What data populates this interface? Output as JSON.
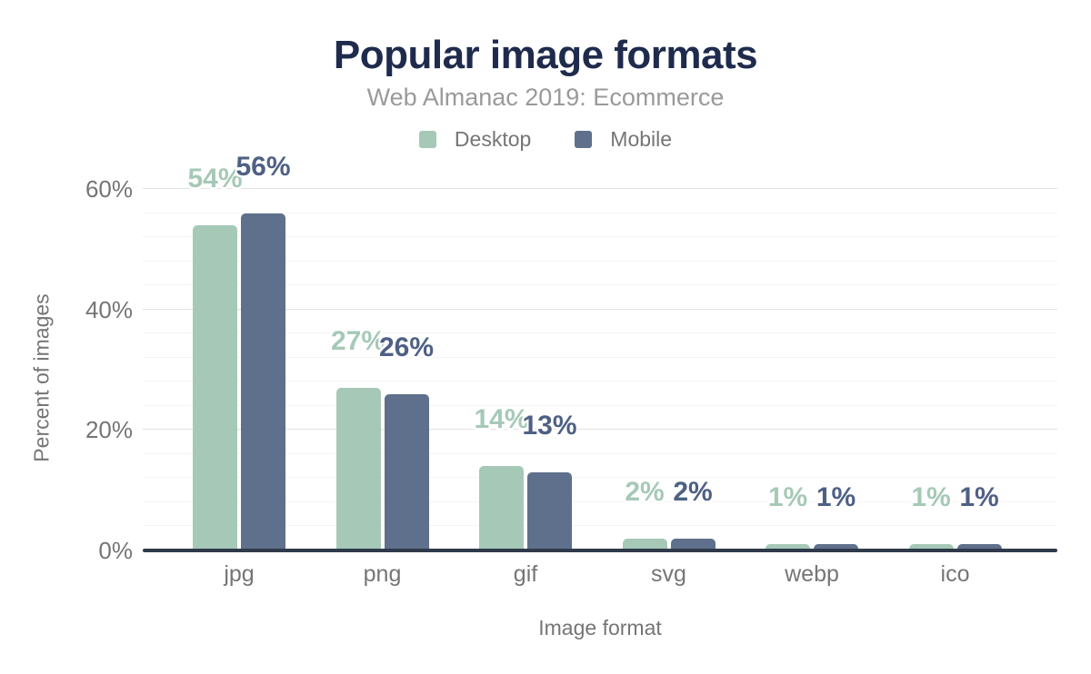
{
  "chart_data": {
    "type": "bar",
    "title": "Popular image formats",
    "subtitle": "Web Almanac 2019: Ecommerce",
    "xlabel": "Image format",
    "ylabel": "Percent of images",
    "categories": [
      "jpg",
      "png",
      "gif",
      "svg",
      "webp",
      "ico"
    ],
    "series": [
      {
        "name": "Desktop",
        "color": "#a6c9b7",
        "label_color": "#a6c9b7",
        "values": [
          54,
          27,
          14,
          2,
          1,
          1
        ],
        "labels": [
          "54%",
          "27%",
          "14%",
          "2%",
          "1%",
          "1%"
        ]
      },
      {
        "name": "Mobile",
        "color": "#5f708c",
        "label_color": "#4e6084",
        "values": [
          56,
          26,
          13,
          2,
          1,
          1
        ],
        "labels": [
          "56%",
          "26%",
          "13%",
          "2%",
          "1%",
          "1%"
        ]
      }
    ],
    "y_ticks": [
      {
        "value": 0,
        "label": "0%"
      },
      {
        "value": 20,
        "label": "20%"
      },
      {
        "value": 40,
        "label": "40%"
      },
      {
        "value": 60,
        "label": "60%"
      }
    ],
    "ylim": [
      0,
      60
    ],
    "minor_grid_step": 4,
    "major_grid_step": 20,
    "grid": true,
    "legend_position": "top"
  },
  "colors": {
    "title": "#1f2b4d",
    "subtitle": "#9a9a9a",
    "axis_text": "#757575",
    "axis_line": "#2f3a4a",
    "grid_major": "#e2e2e2",
    "grid_minor": "#f4f4f4",
    "background": "#ffffff"
  }
}
